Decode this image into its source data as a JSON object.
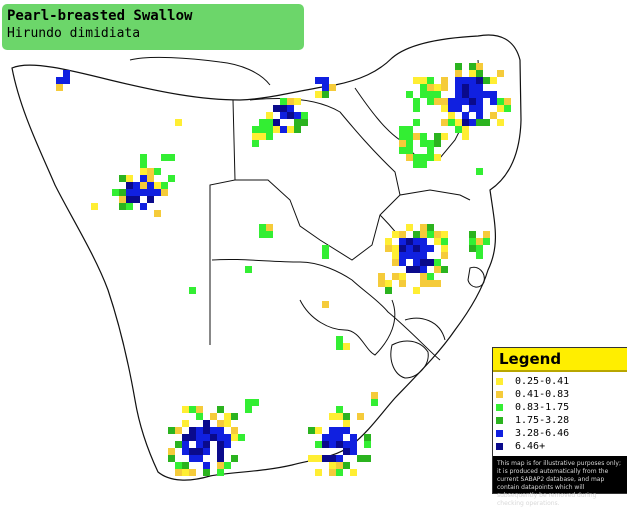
{
  "title": {
    "common_name": "Pearl-breasted Swallow",
    "scientific_name": "Hirundo dimidiata"
  },
  "legend": {
    "heading": "Legend",
    "items": [
      {
        "label": "0.25-0.41",
        "color": "#ffee33"
      },
      {
        "label": "0.41-0.83",
        "color": "#f5cb3a"
      },
      {
        "label": "0.83-1.75",
        "color": "#33ee33"
      },
      {
        "label": "1.75-3.28",
        "color": "#2bb31f"
      },
      {
        "label": "3.28-6.46",
        "color": "#1020e0"
      },
      {
        "label": "6.46+",
        "color": "#0a0a8c"
      }
    ],
    "disclaimer": "This map is for illustrative purposes only; it is produced automatically from the current SABAP2 database, and map contain datapoints which will subsequently be removed during checking operations."
  },
  "map_colors": {
    "land": "#ffffff",
    "ocean": "#ffffff",
    "border": "#111111"
  }
}
